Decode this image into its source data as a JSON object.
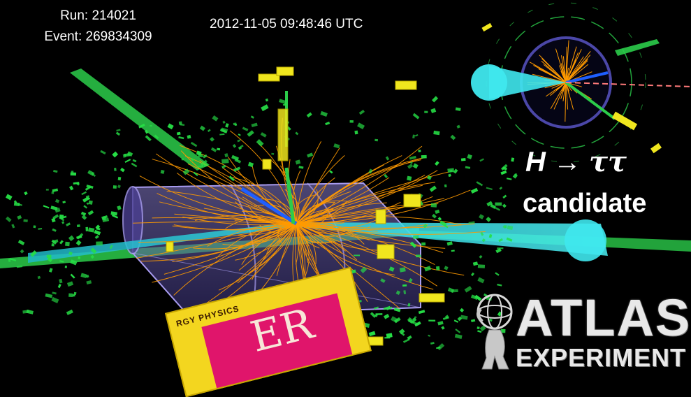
{
  "event_info": {
    "run": "Run: 214021",
    "event": "Event: 269834309",
    "timestamp": "2012-11-05 09:48:46 UTC"
  },
  "annotation": {
    "h_symbol": "H",
    "arrow": "→",
    "tau_tau": "ττ",
    "candidate": "candidate"
  },
  "logo": {
    "name": "ATLAS",
    "subtitle": "EXPERIMENT"
  },
  "magazine": {
    "visible_text": "RGY PHYSICS",
    "big_text": "ER"
  },
  "colors": {
    "background": "#000000",
    "tracks": "#ff9a00",
    "jet_cone": "#2fe0e6",
    "calorimeter_hits": "#26e046",
    "deposits": "#f0e61e",
    "electron_track": "#1f5fff",
    "barrel": "#6b5fb0",
    "missing_et": "#ff7a7a"
  }
}
